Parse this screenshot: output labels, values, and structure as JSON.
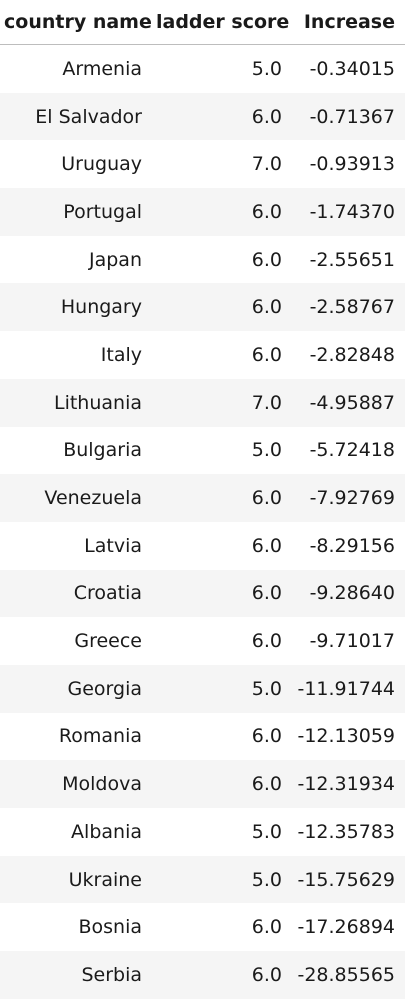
{
  "table": {
    "headers": [
      "country name",
      "ladder score",
      "Increase"
    ],
    "rows": [
      [
        "Armenia",
        "5.0",
        "-0.34015"
      ],
      [
        "El Salvador",
        "6.0",
        "-0.71367"
      ],
      [
        "Uruguay",
        "7.0",
        "-0.93913"
      ],
      [
        "Portugal",
        "6.0",
        "-1.74370"
      ],
      [
        "Japan",
        "6.0",
        "-2.55651"
      ],
      [
        "Hungary",
        "6.0",
        "-2.58767"
      ],
      [
        "Italy",
        "6.0",
        "-2.82848"
      ],
      [
        "Lithuania",
        "7.0",
        "-4.95887"
      ],
      [
        "Bulgaria",
        "5.0",
        "-5.72418"
      ],
      [
        "Venezuela",
        "6.0",
        "-7.92769"
      ],
      [
        "Latvia",
        "6.0",
        "-8.29156"
      ],
      [
        "Croatia",
        "6.0",
        "-9.28640"
      ],
      [
        "Greece",
        "6.0",
        "-9.71017"
      ],
      [
        "Georgia",
        "5.0",
        "-11.91744"
      ],
      [
        "Romania",
        "6.0",
        "-12.13059"
      ],
      [
        "Moldova",
        "6.0",
        "-12.31934"
      ],
      [
        "Albania",
        "5.0",
        "-12.35783"
      ],
      [
        "Ukraine",
        "5.0",
        "-15.75629"
      ],
      [
        "Bosnia",
        "6.0",
        "-17.26894"
      ],
      [
        "Serbia",
        "6.0",
        "-28.85565"
      ]
    ]
  }
}
